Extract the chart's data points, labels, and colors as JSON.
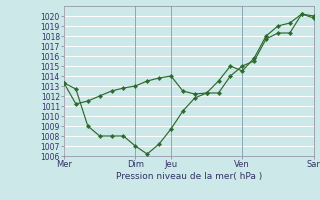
{
  "xlabel": "Pression niveau de la mer( hPa )",
  "ylim": [
    1006,
    1021
  ],
  "yticks": [
    1006,
    1007,
    1008,
    1009,
    1010,
    1011,
    1012,
    1013,
    1014,
    1015,
    1016,
    1017,
    1018,
    1019,
    1020
  ],
  "bg_color": "#cce8e8",
  "grid_color": "#ffffff",
  "line_color": "#2d6a2d",
  "vline_color": "#7799aa",
  "xtick_labels": [
    "Mer",
    "Dim",
    "Jeu",
    "Ven",
    "Sar"
  ],
  "xtick_positions": [
    0,
    6,
    9,
    15,
    21
  ],
  "vline_positions": [
    6,
    9,
    15
  ],
  "xlim": [
    0,
    21
  ],
  "line1_x": [
    0,
    1,
    2,
    3,
    4,
    5,
    6,
    7,
    8,
    9,
    10,
    11,
    12,
    13,
    14,
    15,
    16,
    17,
    18,
    19,
    20,
    21
  ],
  "line1_y": [
    1013.3,
    1012.7,
    1009.0,
    1008.0,
    1008.0,
    1008.0,
    1007.0,
    1006.2,
    1007.2,
    1008.7,
    1010.5,
    1011.8,
    1012.3,
    1012.3,
    1014.0,
    1015.0,
    1015.5,
    1017.7,
    1018.3,
    1018.3,
    1020.2,
    1020.0
  ],
  "line2_x": [
    0,
    1,
    2,
    3,
    4,
    5,
    6,
    7,
    8,
    9,
    10,
    11,
    12,
    13,
    14,
    15,
    16,
    17,
    18,
    19,
    20,
    21
  ],
  "line2_y": [
    1013.3,
    1011.2,
    1011.5,
    1012.0,
    1012.5,
    1012.8,
    1013.0,
    1013.5,
    1013.8,
    1014.0,
    1012.5,
    1012.2,
    1012.3,
    1013.5,
    1015.0,
    1014.5,
    1015.8,
    1018.0,
    1019.0,
    1019.3,
    1020.2,
    1019.8
  ],
  "marker": "D",
  "markersize": 2.2,
  "linewidth": 0.85,
  "tick_fontsize": 5.5,
  "xlabel_fontsize": 6.5,
  "xtick_fontsize": 6.0
}
